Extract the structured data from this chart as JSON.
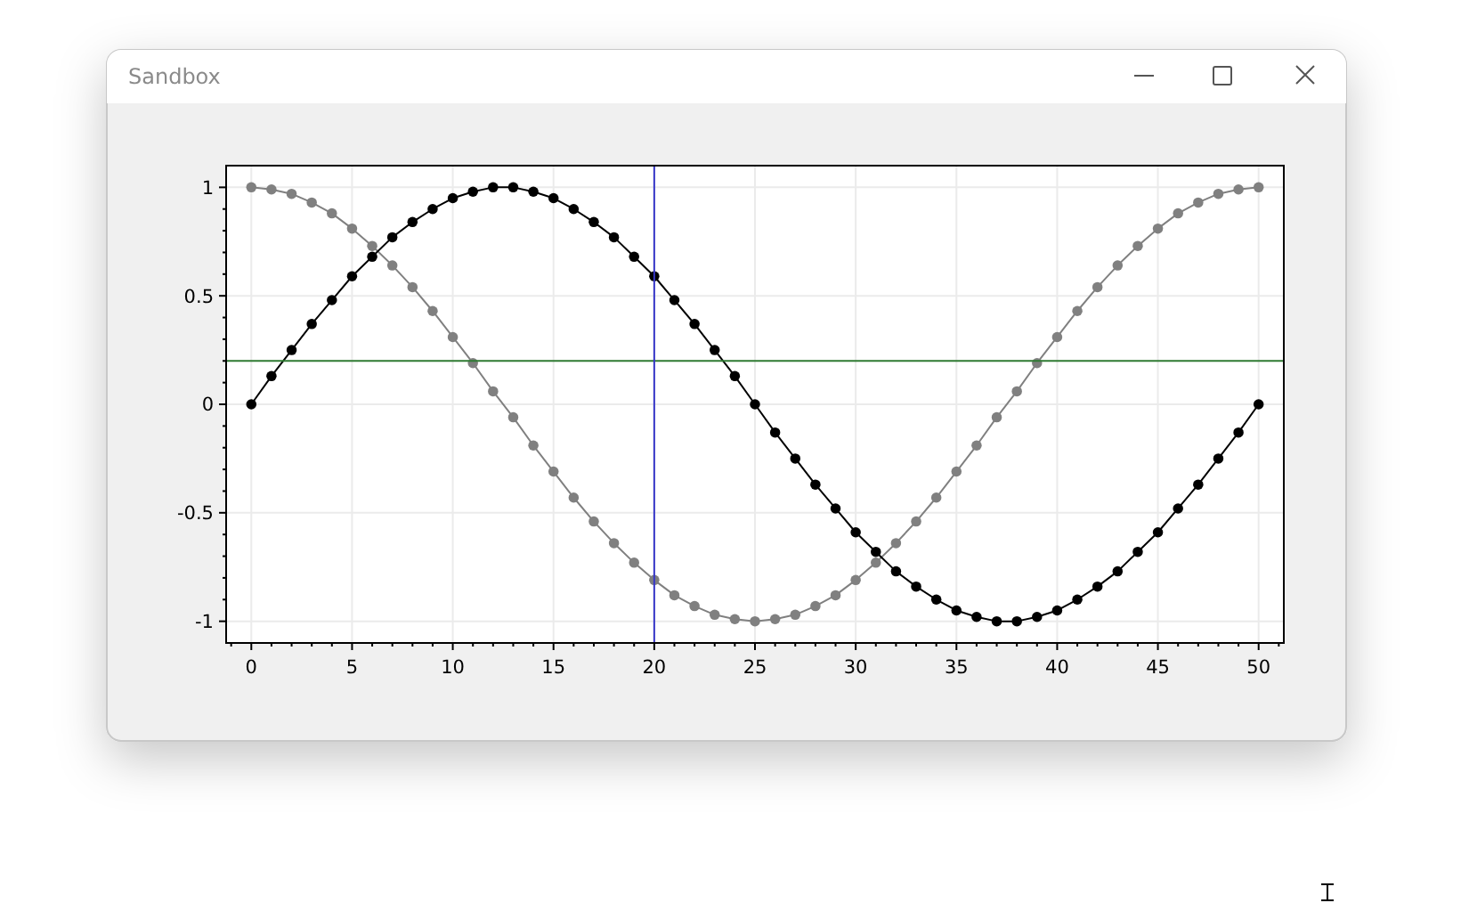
{
  "chart_data": {
    "type": "line",
    "title": "Sandbox",
    "x": [
      0,
      1,
      2,
      3,
      4,
      5,
      6,
      7,
      8,
      9,
      10,
      11,
      12,
      13,
      14,
      15,
      16,
      17,
      18,
      19,
      20,
      21,
      22,
      23,
      24,
      25,
      26,
      27,
      28,
      29,
      30,
      31,
      32,
      33,
      34,
      35,
      36,
      37,
      38,
      39,
      40,
      41,
      42,
      43,
      44,
      45,
      46,
      47,
      48,
      49,
      50
    ],
    "series": [
      {
        "color": "#808080",
        "values": [
          1,
          0.99,
          0.97,
          0.93,
          0.88,
          0.81,
          0.73,
          0.64,
          0.54,
          0.43,
          0.31,
          0.19,
          0.06,
          -0.06,
          -0.19,
          -0.31,
          -0.43,
          -0.54,
          -0.64,
          -0.73,
          -0.81,
          -0.88,
          -0.93,
          -0.97,
          -0.99,
          -1,
          -0.99,
          -0.97,
          -0.93,
          -0.88,
          -0.81,
          -0.73,
          -0.64,
          -0.54,
          -0.43,
          -0.31,
          -0.19,
          -0.06,
          0.06,
          0.19,
          0.31,
          0.43,
          0.54,
          0.64,
          0.73,
          0.81,
          0.88,
          0.93,
          0.97,
          0.99,
          1
        ]
      },
      {
        "color": "#000000",
        "values": [
          0,
          0.13,
          0.25,
          0.37,
          0.48,
          0.59,
          0.68,
          0.77,
          0.84,
          0.9,
          0.95,
          0.98,
          1,
          1,
          0.98,
          0.95,
          0.9,
          0.84,
          0.77,
          0.68,
          0.59,
          0.48,
          0.37,
          0.25,
          0.13,
          0,
          -0.13,
          -0.25,
          -0.37,
          -0.48,
          -0.59,
          -0.68,
          -0.77,
          -0.84,
          -0.9,
          -0.95,
          -0.98,
          -1,
          -1,
          -0.98,
          -0.95,
          -0.9,
          -0.84,
          -0.77,
          -0.68,
          -0.59,
          -0.48,
          -0.37,
          -0.25,
          -0.13,
          0
        ]
      }
    ],
    "xlim": [
      -1.25,
      51.25
    ],
    "ylim": [
      -1.1,
      1.1
    ],
    "xticks": [
      {
        "value": -1,
        "label": null
      },
      0,
      {
        "value": 1,
        "label": null
      },
      {
        "value": 2,
        "label": null
      },
      {
        "value": 3,
        "label": null
      },
      {
        "value": 4,
        "label": null
      },
      5,
      {
        "value": 6,
        "label": null
      },
      {
        "value": 7,
        "label": null
      },
      {
        "value": 8,
        "label": null
      },
      {
        "value": 9,
        "label": null
      },
      10,
      {
        "value": 11,
        "label": null
      },
      {
        "value": 12,
        "label": null
      },
      {
        "value": 13,
        "label": null
      },
      {
        "value": 14,
        "label": null
      },
      15,
      {
        "value": 16,
        "label": null
      },
      {
        "value": 17,
        "label": null
      },
      {
        "value": 18,
        "label": null
      },
      {
        "value": 19,
        "label": null
      },
      20,
      {
        "value": 21,
        "label": null
      },
      {
        "value": 22,
        "label": null
      },
      {
        "value": 23,
        "label": null
      },
      {
        "value": 24,
        "label": null
      },
      25,
      {
        "value": 26,
        "label": null
      },
      {
        "value": 27,
        "label": null
      },
      {
        "value": 28,
        "label": null
      },
      {
        "value": 29,
        "label": null
      },
      30,
      {
        "value": 31,
        "label": null
      },
      {
        "value": 32,
        "label": null
      },
      {
        "value": 33,
        "label": null
      },
      {
        "value": 34,
        "label": null
      },
      35,
      {
        "value": 36,
        "label": null
      },
      {
        "value": 37,
        "label": null
      },
      {
        "value": 38,
        "label": null
      },
      {
        "value": 39,
        "label": null
      },
      40,
      {
        "value": 41,
        "label": null
      },
      {
        "value": 42,
        "label": null
      },
      {
        "value": 43,
        "label": null
      },
      {
        "value": 44,
        "label": null
      },
      45,
      {
        "value": 46,
        "label": null
      },
      {
        "value": 47,
        "label": null
      },
      {
        "value": 48,
        "label": null
      },
      {
        "value": 49,
        "label": null
      },
      50,
      {
        "value": 51,
        "label": null
      }
    ],
    "yticks": [
      -1,
      {
        "value": -0.9,
        "label": null
      },
      {
        "value": -0.8,
        "label": null
      },
      {
        "value": -0.7,
        "label": null
      },
      {
        "value": -0.6,
        "label": null
      },
      -0.5,
      {
        "value": -0.4,
        "label": null
      },
      {
        "value": -0.3,
        "label": null
      },
      {
        "value": -0.2,
        "label": null
      },
      {
        "value": -0.1,
        "label": null
      },
      0,
      {
        "value": 0.1,
        "label": null
      },
      {
        "value": 0.2,
        "label": null
      },
      {
        "value": 0.3,
        "label": null
      },
      {
        "value": 0.4,
        "label": null
      },
      0.5,
      {
        "value": 0.6,
        "label": null
      },
      {
        "value": 0.7,
        "label": null
      },
      {
        "value": 0.8,
        "label": null
      },
      {
        "value": 0.9,
        "label": null
      },
      1
    ],
    "ref_lines": [
      {
        "axis": "y",
        "value": 0.2,
        "color": "#2f7a32"
      },
      {
        "axis": "x",
        "value": 20,
        "color": "#3636c8"
      }
    ],
    "grid": true,
    "marker": "circle",
    "line_style": "solid"
  }
}
